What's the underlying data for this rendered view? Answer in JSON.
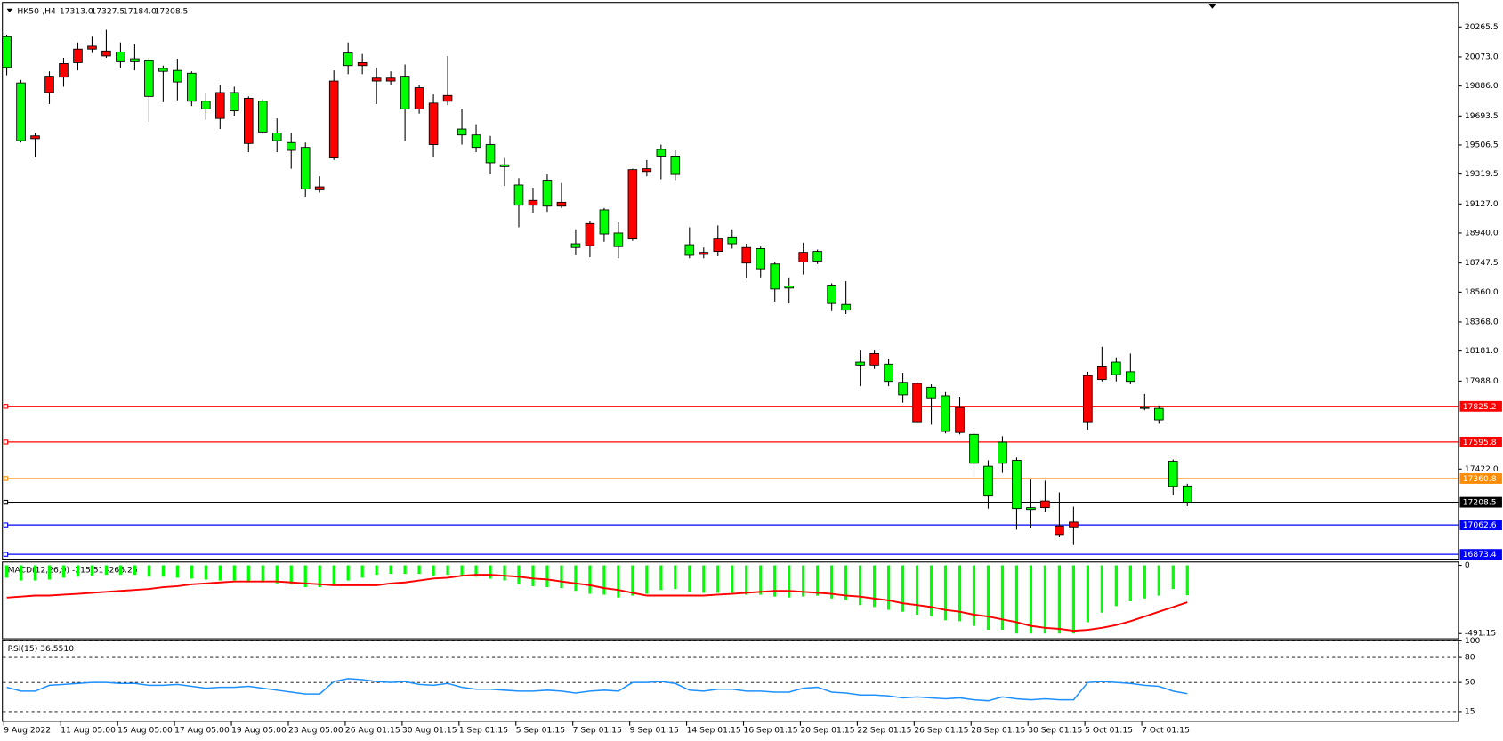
{
  "chart_data": [
    {
      "type": "candlestick",
      "symbol": "HK50-,H4",
      "ohlc_labels": [
        "17313.0",
        "17327.5",
        "17184.0",
        "17208.5"
      ],
      "up_color": "#ff0000",
      "down_color": "#00ff00",
      "categories": [
        "9 Aug 2022",
        null,
        null,
        null,
        "11 Aug 05:00",
        null,
        null,
        null,
        "15 Aug 05:00",
        null,
        null,
        null,
        "17 Aug 05:00",
        null,
        null,
        null,
        "19 Aug 05:00",
        null,
        null,
        null,
        "23 Aug 05:00",
        null,
        null,
        null,
        "26 Aug 01:15",
        null,
        null,
        null,
        "30 Aug 01:15",
        null,
        null,
        null,
        "1 Sep 01:15",
        null,
        null,
        null,
        "5 Sep 01:15",
        null,
        null,
        null,
        "7 Sep 01:15",
        null,
        null,
        null,
        "9 Sep 01:15",
        null,
        null,
        null,
        "14 Sep 01:15",
        null,
        null,
        null,
        "16 Sep 01:15",
        null,
        null,
        null,
        "20 Sep 01:15",
        null,
        null,
        null,
        "22 Sep 01:15",
        null,
        null,
        null,
        "26 Sep 01:15",
        null,
        null,
        null,
        "28 Sep 01:15",
        null,
        null,
        null,
        "30 Sep 01:15",
        null,
        null,
        null,
        "5 Oct 01:15",
        null,
        null,
        null,
        "7 Oct 01:15",
        null,
        null,
        null
      ],
      "open": [
        20203,
        19906,
        19547,
        19844,
        19943,
        20036,
        20123,
        20079,
        20104,
        20061,
        20048,
        19999,
        19986,
        19968,
        19788,
        19677,
        19844,
        19516,
        19788,
        19584,
        19522,
        19491,
        19218,
        19423,
        20098,
        20017,
        19918,
        19918,
        19949,
        19739,
        19509,
        19788,
        19609,
        19571,
        19509,
        19379,
        19249,
        19119,
        19280,
        19113,
        18871,
        18859,
        19089,
        18940,
        18902,
        19336,
        19478,
        19435,
        18865,
        18803,
        18822,
        18915,
        18747,
        18840,
        18741,
        18599,
        18754,
        18822,
        18605,
        18481,
        18110,
        18091,
        18097,
        17980,
        17726,
        17948,
        17893,
        17657,
        17645,
        17440,
        17595,
        17478,
        17174,
        17174,
        17001,
        17050,
        17726,
        17998,
        18110,
        18048,
        17818,
        17812,
        17472,
        17313.0
      ],
      "high": [
        20216,
        19925,
        19584,
        19980,
        20067,
        20166,
        20203,
        20247,
        20166,
        20154,
        20067,
        20017,
        20061,
        19980,
        19844,
        19894,
        19881,
        19819,
        19801,
        19677,
        19584,
        19522,
        19305,
        19986,
        20166,
        20092,
        20005,
        19980,
        20024,
        19894,
        19832,
        20079,
        19739,
        19640,
        19565,
        19423,
        19293,
        19231,
        19317,
        19262,
        18964,
        19014,
        19101,
        19008,
        19354,
        19410,
        19509,
        19472,
        18977,
        18847,
        18989,
        18964,
        18871,
        18853,
        18754,
        18655,
        18878,
        18834,
        18617,
        18630,
        18184,
        18184,
        18128,
        18041,
        17986,
        17967,
        17917,
        17887,
        17688,
        17478,
        17633,
        17496,
        17354,
        17347,
        17272,
        17180,
        18048,
        18209,
        18140,
        18165,
        17905,
        17831,
        17484,
        17327.5
      ],
      "low": [
        19955,
        19522,
        19429,
        19770,
        19881,
        19986,
        20098,
        20067,
        19999,
        19986,
        19658,
        19782,
        19794,
        19757,
        19670,
        19609,
        19695,
        19460,
        19578,
        19460,
        19354,
        19175,
        19200,
        19410,
        19962,
        19962,
        19770,
        19894,
        19534,
        19708,
        19429,
        19763,
        19509,
        19460,
        19317,
        19243,
        18977,
        19070,
        19076,
        19101,
        18797,
        18785,
        18884,
        18778,
        18890,
        19305,
        19286,
        19280,
        18778,
        18778,
        18791,
        18840,
        18648,
        18655,
        18500,
        18487,
        18673,
        18741,
        18438,
        18419,
        17955,
        18066,
        17955,
        17849,
        17713,
        17707,
        17651,
        17645,
        17372,
        17168,
        17397,
        17032,
        17044,
        17143,
        16983,
        16933,
        17676,
        17986,
        17986,
        17967,
        17800,
        17713,
        17254,
        17184.0
      ],
      "close": [
        20005,
        19534,
        19565,
        19949,
        20030,
        20123,
        20142,
        20111,
        20042,
        20042,
        19819,
        19980,
        19912,
        19788,
        19739,
        19844,
        19726,
        19807,
        19590,
        19534,
        19472,
        19224,
        19237,
        19918,
        20017,
        20036,
        19937,
        19937,
        19739,
        19875,
        19776,
        19825,
        19571,
        19491,
        19392,
        19367,
        19119,
        19150,
        19113,
        19138,
        18847,
        19001,
        18934,
        18853,
        19348,
        19354,
        19435,
        19317,
        18797,
        18816,
        18902,
        18871,
        18847,
        18710,
        18580,
        18586,
        18816,
        18760,
        18487,
        18444,
        18091,
        18165,
        17986,
        17899,
        17973,
        17880,
        17664,
        17818,
        17459,
        17248,
        17459,
        17168,
        17162,
        17217,
        17056,
        17081,
        18023,
        18079,
        18029,
        17986,
        17812,
        17738,
        17310,
        17208.5
      ],
      "ylim": [
        16839.6,
        20420.4
      ],
      "yticks": [
        {
          "value": 20265.5,
          "label": "20265.5"
        },
        {
          "value": 20073.0,
          "label": "20073.0"
        },
        {
          "value": 19886.0,
          "label": "19886.0"
        },
        {
          "value": 19693.5,
          "label": "19693.5"
        },
        {
          "value": 19506.5,
          "label": "19506.5"
        },
        {
          "value": 19319.5,
          "label": "19319.5"
        },
        {
          "value": 19127.0,
          "label": "19127.0"
        },
        {
          "value": 18940.0,
          "label": "18940.0"
        },
        {
          "value": 18747.5,
          "label": "18747.5"
        },
        {
          "value": 18560.0,
          "label": "18560.0"
        },
        {
          "value": 18368.0,
          "label": "18368.0"
        },
        {
          "value": 18181.0,
          "label": "18181.0"
        },
        {
          "value": 17988.0,
          "label": "17988.0"
        },
        {
          "value": 17422.0,
          "label": "17422.0"
        }
      ],
      "hlines": [
        {
          "value": 17825.2,
          "color": "#ff0000"
        },
        {
          "value": 17595.8,
          "color": "#ff0000"
        },
        {
          "value": 17360.8,
          "color": "#ff8c00"
        },
        {
          "value": 17208.5,
          "color": "#000000"
        },
        {
          "value": 17062.6,
          "color": "#0000ff"
        },
        {
          "value": 16873.4,
          "color": "#0000ff"
        }
      ]
    },
    {
      "type": "bar",
      "title": "MACD(12,26,9) -215.51 -266.26",
      "color": "#00ff00",
      "values": [
        -88.7,
        -109.1,
        -109.1,
        -102.3,
        -88.7,
        -81.8,
        -75.0,
        -68.2,
        -68.2,
        -68.2,
        -81.8,
        -81.8,
        -88.7,
        -95.5,
        -102.3,
        -109.1,
        -109.1,
        -122.8,
        -122.8,
        -129.6,
        -136.4,
        -156.9,
        -156.9,
        -136.4,
        -109.1,
        -88.7,
        -68.2,
        -61.4,
        -61.4,
        -61.4,
        -75.0,
        -68.2,
        -75.0,
        -81.8,
        -95.5,
        -109.1,
        -136.4,
        -150.0,
        -156.9,
        -163.7,
        -184.1,
        -204.6,
        -211.4,
        -231.9,
        -218.2,
        -204.6,
        -177.3,
        -170.5,
        -191.0,
        -197.8,
        -197.8,
        -197.8,
        -211.4,
        -211.4,
        -225.1,
        -231.9,
        -225.1,
        -218.2,
        -238.7,
        -252.3,
        -286.4,
        -300.1,
        -320.5,
        -334.2,
        -354.6,
        -368.3,
        -395.6,
        -402.4,
        -436.5,
        -463.8,
        -463.8,
        -491.0,
        -491.0,
        -491.0,
        -491.0,
        -491.0,
        -409.2,
        -341.0,
        -293.3,
        -259.2,
        -238.7,
        -218.2,
        -170.5,
        -215.51
      ],
      "signal": {
        "color": "#ff0000",
        "values": [
          -232,
          -225,
          -218,
          -218,
          -211,
          -205,
          -198,
          -191,
          -184,
          -177,
          -170,
          -157,
          -150,
          -136,
          -130,
          -123,
          -116,
          -116,
          -116,
          -116,
          -123,
          -130,
          -136,
          -143,
          -143,
          -143,
          -143,
          -130,
          -123,
          -109,
          -95,
          -89,
          -75,
          -68,
          -68,
          -75,
          -82,
          -95,
          -102,
          -116,
          -130,
          -143,
          -164,
          -177,
          -198,
          -218,
          -218,
          -218,
          -218,
          -218,
          -211,
          -205,
          -198,
          -191,
          -184,
          -184,
          -191,
          -198,
          -205,
          -218,
          -225,
          -239,
          -252,
          -273,
          -286,
          -300,
          -321,
          -334,
          -355,
          -368,
          -389,
          -409,
          -436,
          -450,
          -457,
          -471,
          -464,
          -450,
          -430,
          -402,
          -368,
          -334,
          -300,
          -266.26
        ]
      },
      "ylim": [
        -531.9,
        20.5
      ],
      "yticks": [
        0,
        -491.15
      ]
    },
    {
      "type": "line",
      "title": "RSI(15) 36.5510",
      "color": "#1e90ff",
      "values": [
        44.2,
        39.6,
        39.6,
        46.5,
        47.7,
        48.8,
        50.0,
        50.0,
        48.8,
        48.8,
        46.5,
        46.5,
        47.7,
        45.4,
        43.1,
        44.2,
        44.2,
        45.4,
        43.1,
        40.8,
        38.5,
        36.2,
        36.2,
        51.2,
        54.6,
        53.5,
        51.2,
        50.0,
        51.2,
        47.7,
        46.5,
        48.8,
        44.2,
        41.9,
        41.9,
        40.8,
        39.6,
        39.6,
        40.8,
        39.6,
        37.3,
        39.6,
        40.8,
        39.6,
        50.0,
        50.0,
        51.2,
        48.8,
        40.8,
        39.6,
        41.9,
        41.9,
        39.6,
        39.6,
        38.5,
        38.5,
        43.1,
        44.2,
        38.5,
        37.3,
        35.0,
        35.0,
        33.9,
        31.5,
        32.7,
        31.5,
        30.4,
        31.5,
        29.2,
        28.1,
        32.7,
        30.4,
        29.2,
        30.4,
        29.2,
        29.2,
        50.0,
        51.2,
        50.0,
        48.8,
        46.5,
        45.4,
        39.6,
        36.551
      ],
      "ylim": [
        2.7,
        99.6
      ],
      "yticks": [
        100,
        80,
        50,
        15
      ]
    }
  ]
}
